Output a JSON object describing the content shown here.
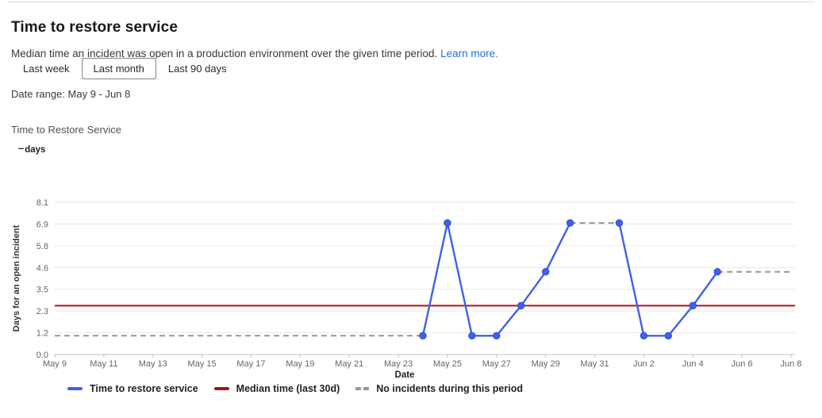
{
  "page": {
    "title": "Time to restore service",
    "description": "Median time an incident was open in a production environment over the given time period.",
    "learn_more_label": "Learn more.",
    "date_range_text": "Date range: May 9 - Jun 8"
  },
  "time_filters": {
    "options": [
      {
        "label": "Last week",
        "selected": false
      },
      {
        "label": "Last month",
        "selected": true
      },
      {
        "label": "Last 90 days",
        "selected": false
      }
    ]
  },
  "chart_header": {
    "title": "Time to Restore Service",
    "stat_value": "–",
    "stat_unit": "days"
  },
  "colors": {
    "series_blue": "#4060ea",
    "median_red": "#b01118",
    "no_incident_gray": "#96969b",
    "gridline": "#e6e6e9",
    "axis_line": "#c2c2c6",
    "tick_label": "#66656b",
    "axis_title": "#333333",
    "link_blue": "#1f6fd9"
  },
  "legend": {
    "items": [
      {
        "label": "Time to restore service",
        "marker": "line",
        "color": "#4060ea"
      },
      {
        "label": "Median time (last 30d)",
        "marker": "line",
        "color": "#b01118"
      },
      {
        "label": "No incidents during this period",
        "marker": "dashed",
        "color": "#96969b"
      }
    ]
  },
  "chart_data": {
    "type": "line",
    "title": "Time to Restore Service",
    "xlabel": "Date",
    "ylabel": "Days for an open incident",
    "ylim": [
      0,
      8.1
    ],
    "grid": true,
    "legend_position": "bottom",
    "y_tick_labels": [
      "0.0",
      "1.2",
      "2.3",
      "3.5",
      "4.6",
      "5.8",
      "6.9",
      "8.1"
    ],
    "x_tick_labels": [
      "May 9",
      "May 11",
      "May 13",
      "May 15",
      "May 17",
      "May 19",
      "May 21",
      "May 23",
      "May 25",
      "May 27",
      "May 29",
      "May 31",
      "Jun 2",
      "Jun 4",
      "Jun 6",
      "Jun 8"
    ],
    "x_tick_days": [
      0,
      2,
      4,
      6,
      8,
      10,
      12,
      14,
      16,
      18,
      20,
      22,
      24,
      26,
      28,
      30
    ],
    "dates": [
      "May 9",
      "May 10",
      "May 11",
      "May 12",
      "May 13",
      "May 14",
      "May 15",
      "May 16",
      "May 17",
      "May 18",
      "May 19",
      "May 20",
      "May 21",
      "May 22",
      "May 23",
      "May 24",
      "May 25",
      "May 26",
      "May 27",
      "May 28",
      "May 29",
      "May 30",
      "May 31",
      "Jun 1",
      "Jun 2",
      "Jun 3",
      "Jun 4",
      "Jun 5",
      "Jun 6",
      "Jun 7",
      "Jun 8"
    ],
    "series": [
      {
        "name": "Time to restore service",
        "type": "line",
        "color": "#4060ea",
        "values": [
          null,
          null,
          null,
          null,
          null,
          null,
          null,
          null,
          null,
          null,
          null,
          null,
          null,
          null,
          null,
          1,
          7,
          1,
          1,
          2.6,
          4.4,
          7,
          null,
          7,
          1,
          1,
          2.6,
          4.4,
          null,
          null,
          null
        ]
      },
      {
        "name": "Median time (last 30d)",
        "type": "horizontal-line",
        "color": "#b01118",
        "value": 2.6
      },
      {
        "name": "No incidents during this period",
        "type": "dashed-line",
        "color": "#96969b",
        "segments": [
          {
            "from_day": 0,
            "to_day": 15,
            "value": 1
          },
          {
            "from_day": 21,
            "to_day": 23,
            "value": 7
          },
          {
            "from_day": 27,
            "to_day": 30,
            "value": 4.4
          }
        ]
      }
    ]
  }
}
